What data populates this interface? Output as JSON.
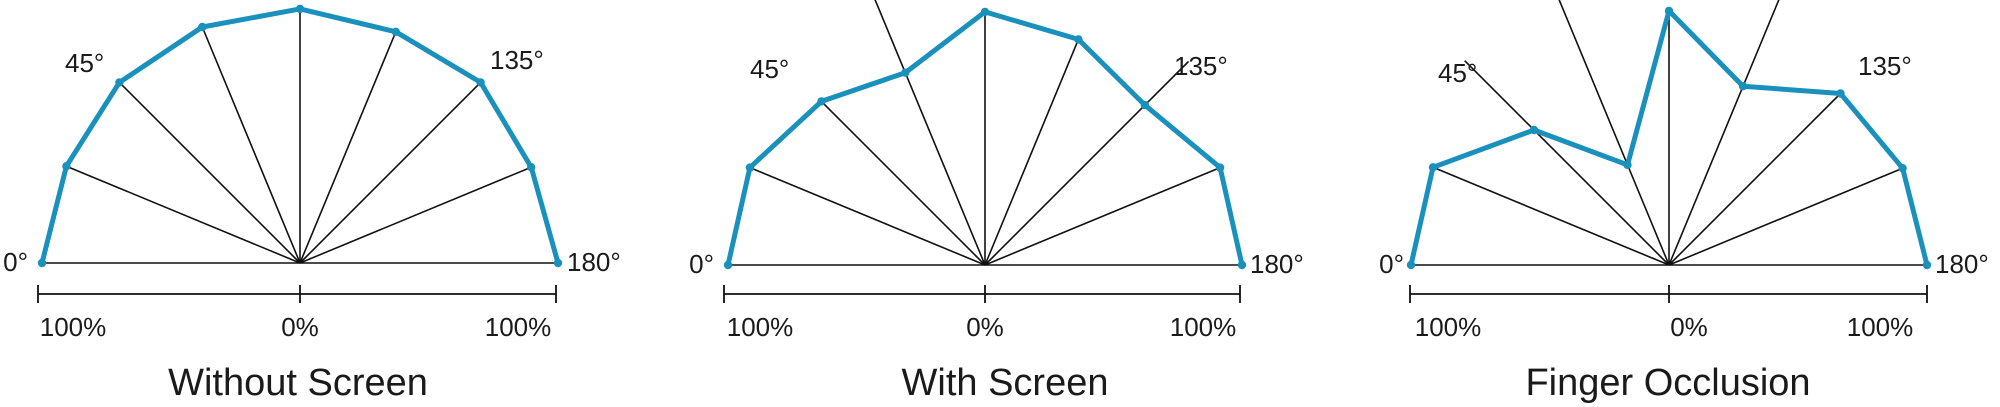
{
  "colors": {
    "polyline": "#1a91bd",
    "ray": "#111111",
    "axis": "#111111",
    "text": "#1a1a1a"
  },
  "chart_data": [
    {
      "type": "line",
      "title": "Without Screen",
      "angle_labels": [
        "0°",
        "45°",
        "135°",
        "180°"
      ],
      "axis_labels": [
        "100%",
        "0%",
        "100%"
      ],
      "angles_deg": [
        0,
        22.5,
        45,
        67.5,
        90,
        112.5,
        135,
        157.5,
        180
      ],
      "values": [
        1.0,
        0.98,
        0.99,
        0.99,
        0.985,
        0.97,
        0.99,
        0.97,
        1.0
      ]
    },
    {
      "type": "line",
      "title": "With Screen",
      "angle_labels": [
        "45°",
        "135°",
        "0°",
        "180°"
      ],
      "axis_labels": [
        "100%",
        "0%",
        "100%"
      ],
      "angles_deg": [
        0,
        22.5,
        45,
        67.5,
        90,
        112.5,
        135,
        157.5,
        180
      ],
      "values": [
        1.0,
        0.99,
        0.9,
        0.81,
        0.985,
        0.95,
        0.88,
        0.99,
        1.0
      ]
    },
    {
      "type": "line",
      "title": "Finger Occlusion",
      "angle_labels": [
        "45°",
        "135°",
        "0°",
        "180°"
      ],
      "axis_labels": [
        "100%",
        "0%",
        "100%"
      ],
      "angles_deg": [
        0,
        22.5,
        45,
        67.5,
        90,
        112.5,
        135,
        157.5,
        180
      ],
      "values": [
        1.0,
        0.99,
        0.74,
        0.42,
        0.985,
        0.75,
        0.94,
        0.98,
        1.0
      ]
    }
  ]
}
